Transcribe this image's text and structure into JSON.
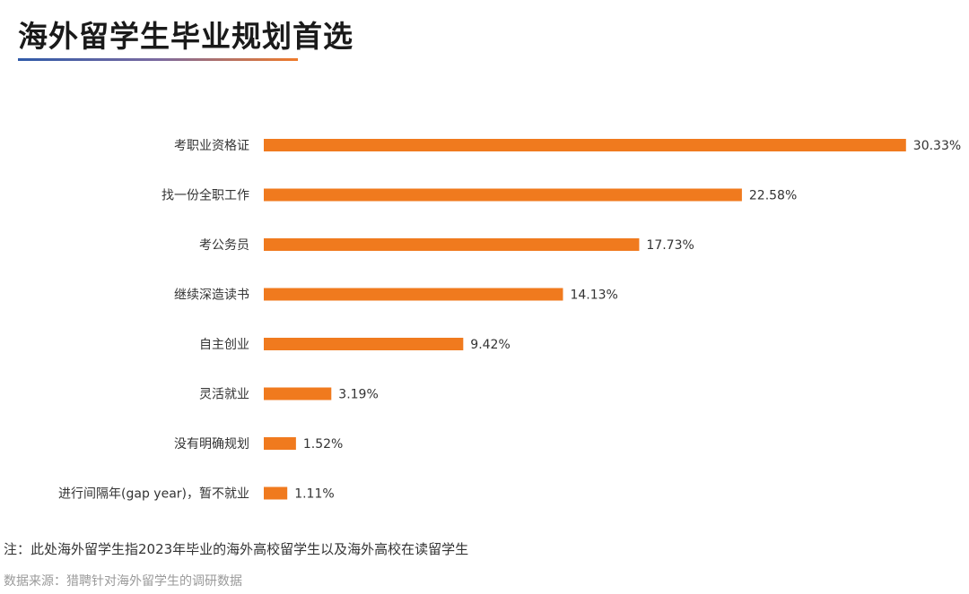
{
  "title": "海外留学生毕业规划首选",
  "note": "注：此处海外留学生指2023年毕业的海外高校留学生以及海外高校在读留学生",
  "source": "数据来源：猎聘针对海外留学生的调研数据",
  "colors": {
    "bar": "#f07a1e",
    "title_gradient": [
      "#2f5aa8",
      "#ef7a2a"
    ]
  },
  "chart_data": {
    "type": "bar",
    "orientation": "horizontal",
    "title": "海外留学生毕业规划首选",
    "xlabel": "",
    "ylabel": "",
    "grid": false,
    "categories": [
      "考职业资格证",
      "找一份全职工作",
      "考公务员",
      "继续深造读书",
      "自主创业",
      "灵活就业",
      "没有明确规划",
      "进行间隔年(gap year)，暂不就业"
    ],
    "values": [
      30.33,
      22.58,
      17.73,
      14.13,
      9.42,
      3.19,
      1.52,
      1.11
    ],
    "value_labels": [
      "30.33%",
      "22.58%",
      "17.73%",
      "14.13%",
      "9.42%",
      "3.19%",
      "1.52%",
      "1.11%"
    ],
    "unit": "%"
  }
}
